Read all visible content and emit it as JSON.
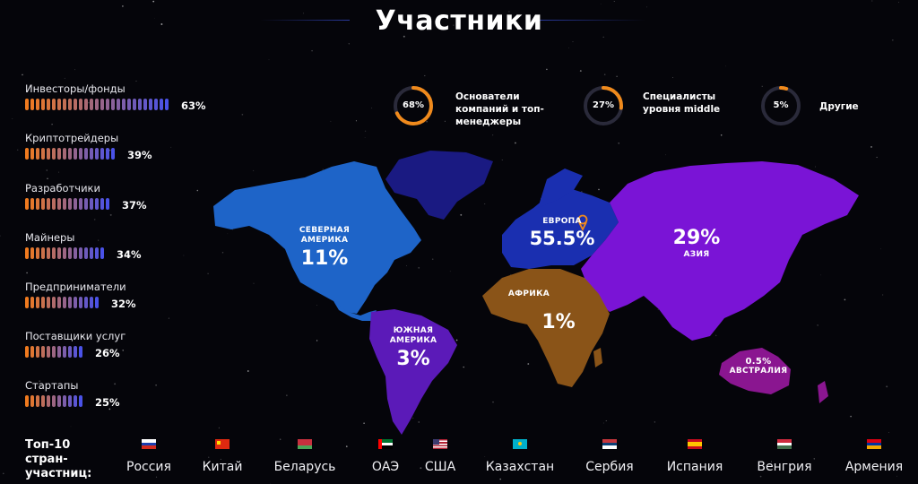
{
  "header": {
    "title": "Участники"
  },
  "categories": [
    {
      "label": "Инвесторы/фонды",
      "percent": 63,
      "pct_text": "63%"
    },
    {
      "label": "Криптотрейдеры",
      "percent": 39,
      "pct_text": "39%"
    },
    {
      "label": "Разработчики",
      "percent": 37,
      "pct_text": "37%"
    },
    {
      "label": "Майнеры",
      "percent": 34,
      "pct_text": "34%"
    },
    {
      "label": "Предприниматели",
      "percent": 32,
      "pct_text": "32%"
    },
    {
      "label": "Поставщики услуг",
      "percent": 26,
      "pct_text": "26%"
    },
    {
      "label": "Стартапы",
      "percent": 25,
      "pct_text": "25%"
    }
  ],
  "stats": [
    {
      "value": "68%",
      "fraction": 0.68,
      "text_1": "Основатели",
      "text_2": "компаний и топ-",
      "text_3": "менеджеры"
    },
    {
      "value": "27%",
      "fraction": 0.27,
      "text_1": "Специалисты",
      "text_2": "уровня middle",
      "text_3": ""
    },
    {
      "value": "5%",
      "fraction": 0.05,
      "text_1": "Другие",
      "text_2": "",
      "text_3": ""
    }
  ],
  "regions": {
    "north_america": {
      "name_1": "СЕВЕРНАЯ",
      "name_2": "АМЕРИКА",
      "value": "11%",
      "color": "#1e64c8"
    },
    "south_america": {
      "name_1": "ЮЖНАЯ",
      "name_2": "АМЕРИКА",
      "value": "3%",
      "color": "#5b1ab8"
    },
    "europe": {
      "name_1": "ЕВРОПА",
      "value": "55.5%",
      "color": "#1a2fb0"
    },
    "asia": {
      "name_1": "АЗИЯ",
      "value": "29%",
      "color": "#7a14d6"
    },
    "africa": {
      "name_1": "АФРИКА",
      "value": "1%",
      "color": "#8a5418"
    },
    "australia": {
      "name_1": "АВСТРАЛИЯ",
      "value": "0.5%",
      "color": "#8a1690"
    },
    "greenland": {
      "color": "#1a1a82"
    }
  },
  "top10": {
    "line_1": "Топ-10",
    "line_2": "стран-",
    "line_3": "участниц:",
    "countries": [
      "Россия",
      "Китай",
      "Беларусь",
      "ОАЭ",
      "США",
      "Казахстан",
      "Сербия",
      "Испания",
      "Венгрия",
      "Армения"
    ]
  },
  "colors": {
    "accent": "#f08a1c",
    "bar_start": "#f07a1e",
    "bar_end": "#4a52e8"
  }
}
